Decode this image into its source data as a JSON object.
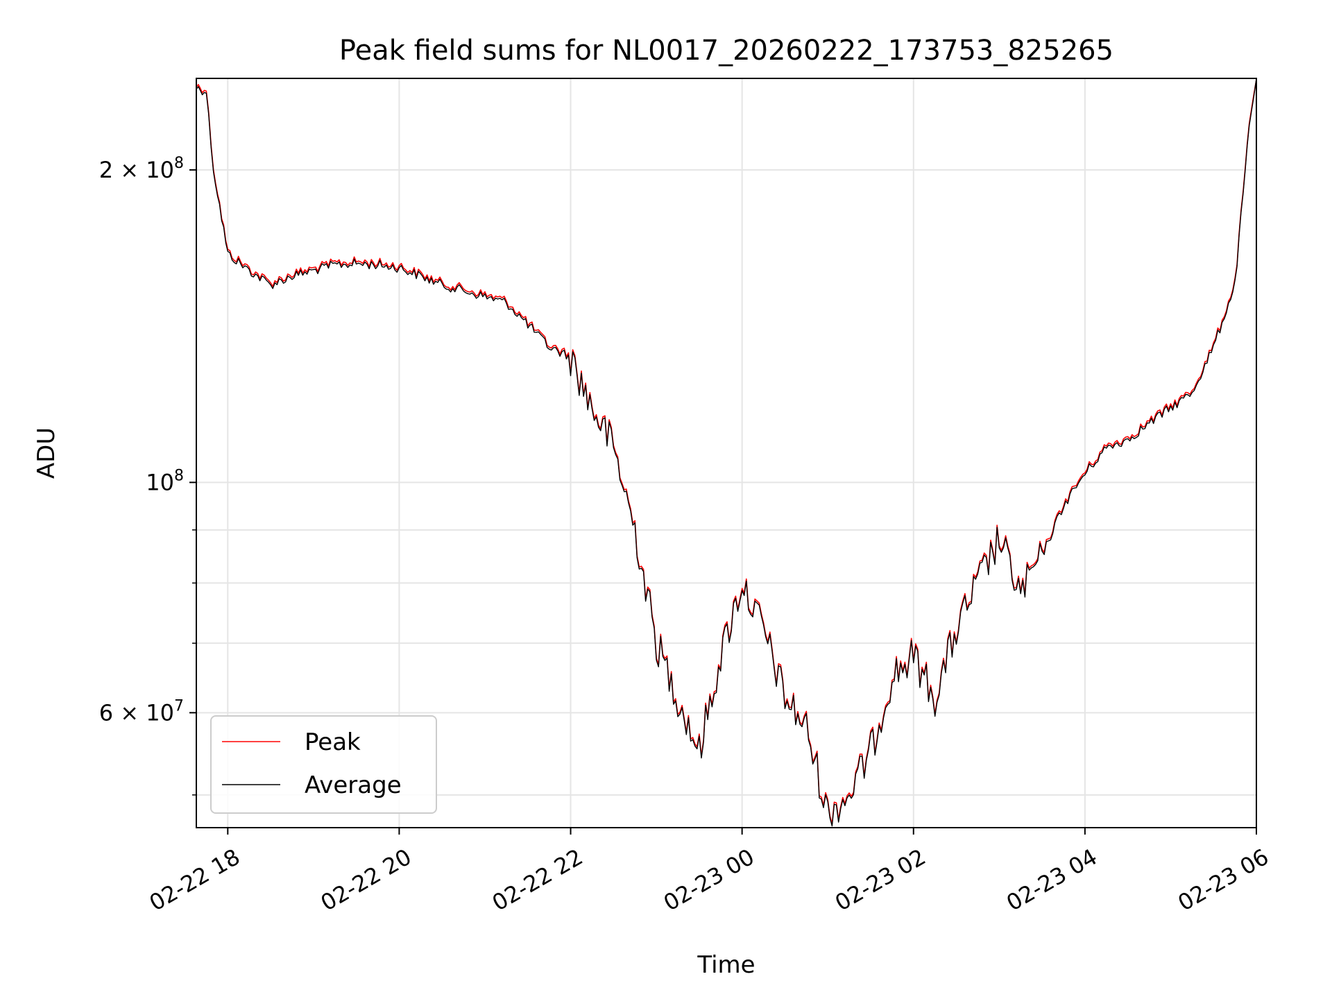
{
  "chart_data": {
    "type": "line",
    "title": "Peak field sums for NL0017_20260222_173753_825265",
    "xlabel": "Time",
    "ylabel": "ADU",
    "yscale": "log",
    "ylim": [
      46500000,
      245000000
    ],
    "xlim": [
      "2026-02-22 17:38",
      "2026-02-23 06:00"
    ],
    "grid": true,
    "legend_position": "lower-left",
    "x_ticks": [
      {
        "at": "2026-02-22 18:00",
        "label": "02-22 18"
      },
      {
        "at": "2026-02-22 20:00",
        "label": "02-22 20"
      },
      {
        "at": "2026-02-22 22:00",
        "label": "02-22 22"
      },
      {
        "at": "2026-02-23 00:00",
        "label": "02-23 00"
      },
      {
        "at": "2026-02-23 02:00",
        "label": "02-23 02"
      },
      {
        "at": "2026-02-23 04:00",
        "label": "02-23 04"
      },
      {
        "at": "2026-02-23 06:00",
        "label": "02-23 06"
      }
    ],
    "y_major_ticks": [
      {
        "value": 200000000,
        "base": "2 × 10",
        "exp": "8"
      },
      {
        "value": 100000000,
        "base": "10",
        "exp": "8"
      },
      {
        "value": 60000000,
        "base": "6 × 10",
        "exp": "7"
      }
    ],
    "y_minor_ticks": [
      50000000,
      70000000,
      80000000,
      90000000
    ],
    "colors": {
      "peak": "#ff0000",
      "average": "#000000",
      "grid": "#e5e5e5"
    },
    "series": [
      {
        "name": "Peak",
        "color": "#ff0000"
      },
      {
        "name": "Average",
        "color": "#000000"
      }
    ],
    "x": [
      "2026-02-22 17:38",
      "2026-02-22 17:45",
      "2026-02-22 17:50",
      "2026-02-22 18:00",
      "2026-02-22 18:15",
      "2026-02-22 18:30",
      "2026-02-22 18:45",
      "2026-02-22 19:00",
      "2026-02-22 19:15",
      "2026-02-22 19:30",
      "2026-02-22 19:45",
      "2026-02-22 20:00",
      "2026-02-22 20:15",
      "2026-02-22 20:30",
      "2026-02-22 20:45",
      "2026-02-22 21:00",
      "2026-02-22 21:15",
      "2026-02-22 21:30",
      "2026-02-22 21:45",
      "2026-02-22 22:00",
      "2026-02-22 22:15",
      "2026-02-22 22:30",
      "2026-02-22 22:45",
      "2026-02-22 23:00",
      "2026-02-22 23:15",
      "2026-02-22 23:30",
      "2026-02-22 23:45",
      "2026-02-23 00:00",
      "2026-02-23 00:15",
      "2026-02-23 00:30",
      "2026-02-23 00:45",
      "2026-02-23 01:00",
      "2026-02-23 01:15",
      "2026-02-23 01:30",
      "2026-02-23 01:45",
      "2026-02-23 02:00",
      "2026-02-23 02:15",
      "2026-02-23 02:30",
      "2026-02-23 02:45",
      "2026-02-23 03:00",
      "2026-02-23 03:15",
      "2026-02-23 03:30",
      "2026-02-23 03:45",
      "2026-02-23 04:00",
      "2026-02-23 04:15",
      "2026-02-23 04:30",
      "2026-02-23 04:45",
      "2026-02-23 05:00",
      "2026-02-23 05:15",
      "2026-02-23 05:30",
      "2026-02-23 05:45",
      "2026-02-23 05:55",
      "2026-02-23 06:00"
    ],
    "y_average": [
      240000000,
      238000000,
      200000000,
      166000000,
      160000000,
      155000000,
      158000000,
      160000000,
      162000000,
      162500000,
      162000000,
      161000000,
      158000000,
      155000000,
      153000000,
      151000000,
      149000000,
      142000000,
      135000000,
      132000000,
      118000000,
      108000000,
      90000000,
      70000000,
      62000000,
      55000000,
      68000000,
      80000000,
      72000000,
      62000000,
      58000000,
      48000000,
      50000000,
      55000000,
      65000000,
      68000000,
      62000000,
      72000000,
      80000000,
      88000000,
      78000000,
      85000000,
      95000000,
      102000000,
      108000000,
      110000000,
      114000000,
      118000000,
      122000000,
      135000000,
      155000000,
      220000000,
      245000000
    ]
  },
  "legend": {
    "items": [
      {
        "label": "Peak",
        "color": "#ff0000"
      },
      {
        "label": "Average",
        "color": "#000000"
      }
    ]
  }
}
